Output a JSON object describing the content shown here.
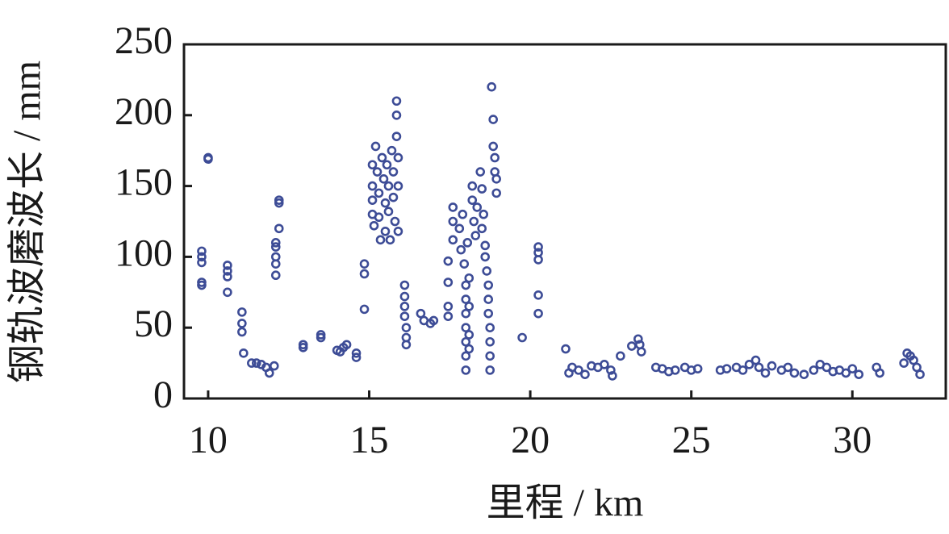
{
  "chart_data": {
    "type": "scatter",
    "x_label": "里程 / km",
    "y_label": "钢轨波磨波长 / mm",
    "color": "#3d4c96",
    "xlim": [
      9.25,
      32.9
    ],
    "xticks": [
      10,
      15,
      20,
      25,
      30
    ],
    "ylim": [
      0,
      250
    ],
    "yticks": [
      0,
      50,
      100,
      150,
      200,
      250
    ],
    "x": [
      9.8,
      9.8,
      9.8,
      9.8,
      9.8,
      10.0,
      10.0,
      10.6,
      10.6,
      10.6,
      10.6,
      11.05,
      11.05,
      11.05,
      11.1,
      11.35,
      11.5,
      11.65,
      11.8,
      11.9,
      12.05,
      12.1,
      12.1,
      12.1,
      12.1,
      12.1,
      12.2,
      12.2,
      12.2,
      12.95,
      12.95,
      13.5,
      13.5,
      14.0,
      14.1,
      14.2,
      14.3,
      14.6,
      14.6,
      14.85,
      14.85,
      14.85,
      15.1,
      15.1,
      15.1,
      15.1,
      15.15,
      15.2,
      15.25,
      15.3,
      15.3,
      15.35,
      15.4,
      15.45,
      15.5,
      15.5,
      15.55,
      15.6,
      15.6,
      15.65,
      15.7,
      15.75,
      15.75,
      15.8,
      15.85,
      15.85,
      15.85,
      15.9,
      15.9,
      15.9,
      16.1,
      16.1,
      16.1,
      16.1,
      16.15,
      16.15,
      16.15,
      16.6,
      16.7,
      16.9,
      17.0,
      17.45,
      17.45,
      17.45,
      17.45,
      17.6,
      17.6,
      17.6,
      17.8,
      17.85,
      17.9,
      17.95,
      18.0,
      18.0,
      18.0,
      18.0,
      18.0,
      18.0,
      18.0,
      18.05,
      18.1,
      18.1,
      18.1,
      18.1,
      18.2,
      18.2,
      18.25,
      18.3,
      18.35,
      18.45,
      18.5,
      18.5,
      18.55,
      18.6,
      18.6,
      18.65,
      18.7,
      18.7,
      18.7,
      18.75,
      18.75,
      18.75,
      18.75,
      18.8,
      18.85,
      18.85,
      18.9,
      18.9,
      18.95,
      18.95,
      19.75,
      20.25,
      20.25,
      20.25,
      20.25,
      20.25,
      21.1,
      21.2,
      21.3,
      21.5,
      21.7,
      21.9,
      22.1,
      22.3,
      22.5,
      22.55,
      22.8,
      23.15,
      23.35,
      23.4,
      23.45,
      23.9,
      24.1,
      24.3,
      24.5,
      24.8,
      25.0,
      25.2,
      25.9,
      26.1,
      26.4,
      26.6,
      26.8,
      27.0,
      27.1,
      27.3,
      27.5,
      27.8,
      28.0,
      28.2,
      28.5,
      28.8,
      29.0,
      29.2,
      29.4,
      29.6,
      29.8,
      30.0,
      30.2,
      30.75,
      30.85,
      31.6,
      31.7,
      31.8,
      31.9,
      32.0,
      32.1
    ],
    "values": [
      104,
      100,
      96,
      82,
      80,
      170,
      169,
      94,
      90,
      86,
      75,
      61,
      53,
      47,
      32,
      25,
      25,
      24,
      22,
      18,
      23,
      110,
      107,
      100,
      95,
      87,
      140,
      138,
      120,
      38,
      36,
      45,
      43,
      34,
      33,
      36,
      38,
      32,
      29,
      95,
      88,
      63,
      165,
      150,
      140,
      130,
      122,
      178,
      160,
      145,
      128,
      112,
      170,
      155,
      138,
      118,
      165,
      150,
      132,
      112,
      175,
      160,
      142,
      125,
      200,
      210,
      185,
      170,
      150,
      118,
      80,
      72,
      65,
      58,
      50,
      43,
      38,
      60,
      55,
      53,
      55,
      97,
      82,
      65,
      58,
      135,
      125,
      112,
      120,
      105,
      130,
      95,
      80,
      70,
      60,
      50,
      40,
      30,
      20,
      110,
      85,
      65,
      45,
      35,
      150,
      140,
      125,
      115,
      135,
      160,
      148,
      120,
      130,
      108,
      100,
      90,
      80,
      70,
      60,
      50,
      40,
      30,
      20,
      220,
      197,
      178,
      170,
      160,
      145,
      155,
      43,
      107,
      103,
      98,
      73,
      60,
      35,
      18,
      22,
      20,
      17,
      23,
      22,
      24,
      20,
      16,
      30,
      37,
      42,
      38,
      33,
      22,
      21,
      19,
      20,
      22,
      20,
      21,
      20,
      21,
      22,
      20,
      24,
      27,
      22,
      18,
      23,
      20,
      22,
      18,
      17,
      20,
      24,
      22,
      19,
      20,
      18,
      21,
      17,
      22,
      18,
      25,
      32,
      30,
      27,
      22,
      17
    ]
  }
}
